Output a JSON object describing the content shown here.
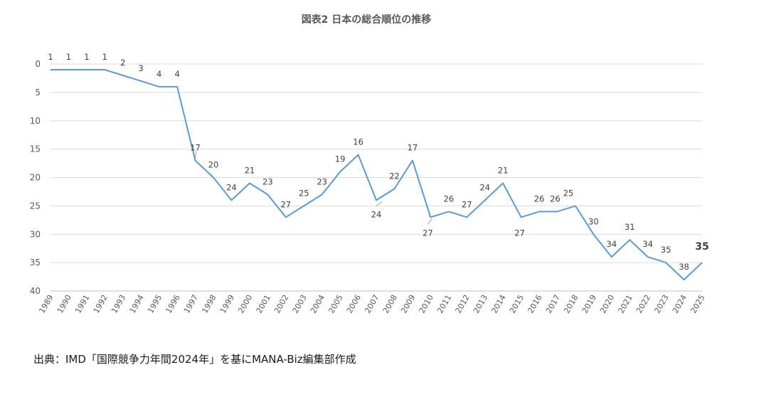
{
  "chart_data": {
    "type": "line",
    "title": "図表2 日本の総合順位の推移",
    "x": [
      "1989",
      "1990",
      "1991",
      "1992",
      "1993",
      "1994",
      "1995",
      "1996",
      "1997",
      "1998",
      "1999",
      "2000",
      "2001",
      "2002",
      "2003",
      "2004",
      "2005",
      "2006",
      "2007",
      "2008",
      "2009",
      "2010",
      "2011",
      "2012",
      "2013",
      "2014",
      "2015",
      "2016",
      "2017",
      "2018",
      "2019",
      "2020",
      "2021",
      "2022",
      "2023",
      "2024",
      "2025"
    ],
    "series": [
      {
        "name": "日本の総合順位",
        "values": [
          1,
          1,
          1,
          1,
          2,
          3,
          4,
          4,
          17,
          20,
          24,
          21,
          23,
          27,
          25,
          23,
          19,
          16,
          24,
          22,
          17,
          27,
          26,
          27,
          24,
          21,
          27,
          26,
          26,
          25,
          30,
          34,
          31,
          34,
          35,
          38,
          35
        ]
      }
    ],
    "ylim": [
      0,
      40
    ],
    "y_inverted": true,
    "yticks": [
      0,
      5,
      10,
      15,
      20,
      25,
      30,
      35,
      40
    ],
    "grid": true,
    "color": "#5b9bd5",
    "xlabel": "",
    "ylabel": ""
  },
  "source_note": "出典：IMD「国際競争力年間2024年」を基にMANA-Biz編集部作成"
}
